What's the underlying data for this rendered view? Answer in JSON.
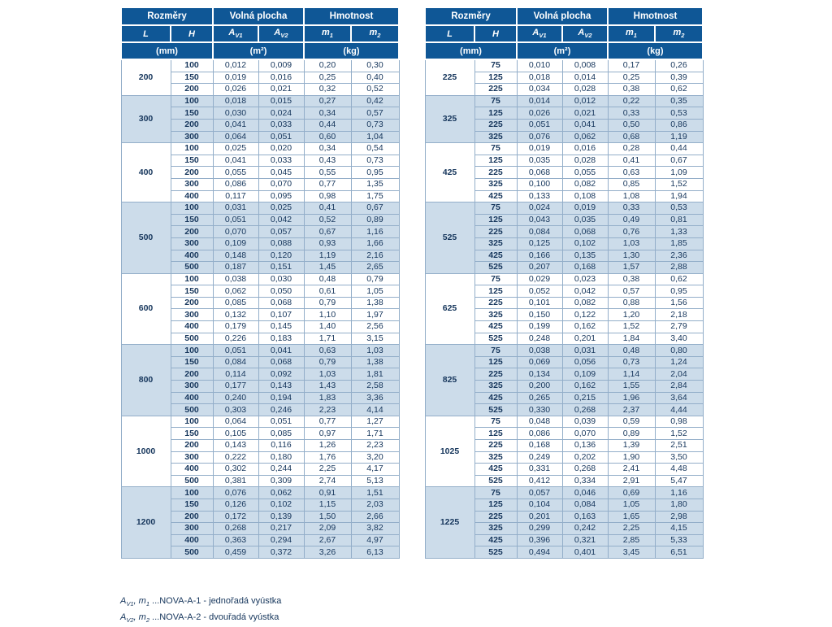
{
  "colors": {
    "header_bg": "#0f5796",
    "alt_row_bg": "#ccdcea",
    "text": "#16365c",
    "border": "#93aec9"
  },
  "tables": [
    {
      "name": "dimensions-table-left",
      "header": {
        "groups": [
          {
            "label": "Rozměry",
            "span": 2
          },
          {
            "label": "Volná plocha",
            "span": 2
          },
          {
            "label": "Hmotnost",
            "span": 2
          }
        ],
        "columns": [
          {
            "base": "L"
          },
          {
            "base": "H"
          },
          {
            "base": "A",
            "sub": "V1"
          },
          {
            "base": "A",
            "sub": "V2"
          },
          {
            "base": "m",
            "sub": "1"
          },
          {
            "base": "m",
            "sub": "2"
          }
        ],
        "units": [
          {
            "label": "(mm)",
            "span": 2
          },
          {
            "label": "(m²)",
            "span": 2
          },
          {
            "label": "(kg)",
            "span": 2
          }
        ]
      },
      "groups": [
        {
          "L": "200",
          "rows": [
            [
              "100",
              "0,012",
              "0,009",
              "0,20",
              "0,30"
            ],
            [
              "150",
              "0,019",
              "0,016",
              "0,25",
              "0,40"
            ],
            [
              "200",
              "0,026",
              "0,021",
              "0,32",
              "0,52"
            ]
          ]
        },
        {
          "L": "300",
          "rows": [
            [
              "100",
              "0,018",
              "0,015",
              "0,27",
              "0,42"
            ],
            [
              "150",
              "0,030",
              "0,024",
              "0,34",
              "0,57"
            ],
            [
              "200",
              "0,041",
              "0,033",
              "0,44",
              "0,73"
            ],
            [
              "300",
              "0,064",
              "0,051",
              "0,60",
              "1,04"
            ]
          ]
        },
        {
          "L": "400",
          "rows": [
            [
              "100",
              "0,025",
              "0,020",
              "0,34",
              "0,54"
            ],
            [
              "150",
              "0,041",
              "0,033",
              "0,43",
              "0,73"
            ],
            [
              "200",
              "0,055",
              "0,045",
              "0,55",
              "0,95"
            ],
            [
              "300",
              "0,086",
              "0,070",
              "0,77",
              "1,35"
            ],
            [
              "400",
              "0,117",
              "0,095",
              "0,98",
              "1,75"
            ]
          ]
        },
        {
          "L": "500",
          "rows": [
            [
              "100",
              "0,031",
              "0,025",
              "0,41",
              "0,67"
            ],
            [
              "150",
              "0,051",
              "0,042",
              "0,52",
              "0,89"
            ],
            [
              "200",
              "0,070",
              "0,057",
              "0,67",
              "1,16"
            ],
            [
              "300",
              "0,109",
              "0,088",
              "0,93",
              "1,66"
            ],
            [
              "400",
              "0,148",
              "0,120",
              "1,19",
              "2,16"
            ],
            [
              "500",
              "0,187",
              "0,151",
              "1,45",
              "2,65"
            ]
          ]
        },
        {
          "L": "600",
          "rows": [
            [
              "100",
              "0,038",
              "0,030",
              "0,48",
              "0,79"
            ],
            [
              "150",
              "0,062",
              "0,050",
              "0,61",
              "1,05"
            ],
            [
              "200",
              "0,085",
              "0,068",
              "0,79",
              "1,38"
            ],
            [
              "300",
              "0,132",
              "0,107",
              "1,10",
              "1,97"
            ],
            [
              "400",
              "0,179",
              "0,145",
              "1,40",
              "2,56"
            ],
            [
              "500",
              "0,226",
              "0,183",
              "1,71",
              "3,15"
            ]
          ]
        },
        {
          "L": "800",
          "rows": [
            [
              "100",
              "0,051",
              "0,041",
              "0,63",
              "1,03"
            ],
            [
              "150",
              "0,084",
              "0,068",
              "0,79",
              "1,38"
            ],
            [
              "200",
              "0,114",
              "0,092",
              "1,03",
              "1,81"
            ],
            [
              "300",
              "0,177",
              "0,143",
              "1,43",
              "2,58"
            ],
            [
              "400",
              "0,240",
              "0,194",
              "1,83",
              "3,36"
            ],
            [
              "500",
              "0,303",
              "0,246",
              "2,23",
              "4,14"
            ]
          ]
        },
        {
          "L": "1000",
          "rows": [
            [
              "100",
              "0,064",
              "0,051",
              "0,77",
              "1,27"
            ],
            [
              "150",
              "0,105",
              "0,085",
              "0,97",
              "1,71"
            ],
            [
              "200",
              "0,143",
              "0,116",
              "1,26",
              "2,23"
            ],
            [
              "300",
              "0,222",
              "0,180",
              "1,76",
              "3,20"
            ],
            [
              "400",
              "0,302",
              "0,244",
              "2,25",
              "4,17"
            ],
            [
              "500",
              "0,381",
              "0,309",
              "2,74",
              "5,13"
            ]
          ]
        },
        {
          "L": "1200",
          "rows": [
            [
              "100",
              "0,076",
              "0,062",
              "0,91",
              "1,51"
            ],
            [
              "150",
              "0,126",
              "0,102",
              "1,15",
              "2,03"
            ],
            [
              "200",
              "0,172",
              "0,139",
              "1,50",
              "2,66"
            ],
            [
              "300",
              "0,268",
              "0,217",
              "2,09",
              "3,82"
            ],
            [
              "400",
              "0,363",
              "0,294",
              "2,67",
              "4,97"
            ],
            [
              "500",
              "0,459",
              "0,372",
              "3,26",
              "6,13"
            ]
          ]
        }
      ]
    },
    {
      "name": "dimensions-table-right",
      "header": {
        "groups": [
          {
            "label": "Rozměry",
            "span": 2
          },
          {
            "label": "Volná plocha",
            "span": 2
          },
          {
            "label": "Hmotnost",
            "span": 2
          }
        ],
        "columns": [
          {
            "base": "L"
          },
          {
            "base": "H"
          },
          {
            "base": "A",
            "sub": "V1"
          },
          {
            "base": "A",
            "sub": "V2"
          },
          {
            "base": "m",
            "sub": "1"
          },
          {
            "base": "m",
            "sub": "2"
          }
        ],
        "units": [
          {
            "label": "(mm)",
            "span": 2
          },
          {
            "label": "(m²)",
            "span": 2
          },
          {
            "label": "(kg)",
            "span": 2
          }
        ]
      },
      "groups": [
        {
          "L": "225",
          "rows": [
            [
              "75",
              "0,010",
              "0,008",
              "0,17",
              "0,26"
            ],
            [
              "125",
              "0,018",
              "0,014",
              "0,25",
              "0,39"
            ],
            [
              "225",
              "0,034",
              "0,028",
              "0,38",
              "0,62"
            ]
          ]
        },
        {
          "L": "325",
          "rows": [
            [
              "75",
              "0,014",
              "0,012",
              "0,22",
              "0,35"
            ],
            [
              "125",
              "0,026",
              "0,021",
              "0,33",
              "0,53"
            ],
            [
              "225",
              "0,051",
              "0,041",
              "0,50",
              "0,86"
            ],
            [
              "325",
              "0,076",
              "0,062",
              "0,68",
              "1,19"
            ]
          ]
        },
        {
          "L": "425",
          "rows": [
            [
              "75",
              "0,019",
              "0,016",
              "0,28",
              "0,44"
            ],
            [
              "125",
              "0,035",
              "0,028",
              "0,41",
              "0,67"
            ],
            [
              "225",
              "0,068",
              "0,055",
              "0,63",
              "1,09"
            ],
            [
              "325",
              "0,100",
              "0,082",
              "0,85",
              "1,52"
            ],
            [
              "425",
              "0,133",
              "0,108",
              "1,08",
              "1,94"
            ]
          ]
        },
        {
          "L": "525",
          "rows": [
            [
              "75",
              "0,024",
              "0,019",
              "0,33",
              "0,53"
            ],
            [
              "125",
              "0,043",
              "0,035",
              "0,49",
              "0,81"
            ],
            [
              "225",
              "0,084",
              "0,068",
              "0,76",
              "1,33"
            ],
            [
              "325",
              "0,125",
              "0,102",
              "1,03",
              "1,85"
            ],
            [
              "425",
              "0,166",
              "0,135",
              "1,30",
              "2,36"
            ],
            [
              "525",
              "0,207",
              "0,168",
              "1,57",
              "2,88"
            ]
          ]
        },
        {
          "L": "625",
          "rows": [
            [
              "75",
              "0,029",
              "0,023",
              "0,38",
              "0,62"
            ],
            [
              "125",
              "0,052",
              "0,042",
              "0,57",
              "0,95"
            ],
            [
              "225",
              "0,101",
              "0,082",
              "0,88",
              "1,56"
            ],
            [
              "325",
              "0,150",
              "0,122",
              "1,20",
              "2,18"
            ],
            [
              "425",
              "0,199",
              "0,162",
              "1,52",
              "2,79"
            ],
            [
              "525",
              "0,248",
              "0,201",
              "1,84",
              "3,40"
            ]
          ]
        },
        {
          "L": "825",
          "rows": [
            [
              "75",
              "0,038",
              "0,031",
              "0,48",
              "0,80"
            ],
            [
              "125",
              "0,069",
              "0,056",
              "0,73",
              "1,24"
            ],
            [
              "225",
              "0,134",
              "0,109",
              "1,14",
              "2,04"
            ],
            [
              "325",
              "0,200",
              "0,162",
              "1,55",
              "2,84"
            ],
            [
              "425",
              "0,265",
              "0,215",
              "1,96",
              "3,64"
            ],
            [
              "525",
              "0,330",
              "0,268",
              "2,37",
              "4,44"
            ]
          ]
        },
        {
          "L": "1025",
          "rows": [
            [
              "75",
              "0,048",
              "0,039",
              "0,59",
              "0,98"
            ],
            [
              "125",
              "0,086",
              "0,070",
              "0,89",
              "1,52"
            ],
            [
              "225",
              "0,168",
              "0,136",
              "1,39",
              "2,51"
            ],
            [
              "325",
              "0,249",
              "0,202",
              "1,90",
              "3,50"
            ],
            [
              "425",
              "0,331",
              "0,268",
              "2,41",
              "4,48"
            ],
            [
              "525",
              "0,412",
              "0,334",
              "2,91",
              "5,47"
            ]
          ]
        },
        {
          "L": "1225",
          "rows": [
            [
              "75",
              "0,057",
              "0,046",
              "0,69",
              "1,16"
            ],
            [
              "125",
              "0,104",
              "0,084",
              "1,05",
              "1,80"
            ],
            [
              "225",
              "0,201",
              "0,163",
              "1,65",
              "2,98"
            ],
            [
              "325",
              "0,299",
              "0,242",
              "2,25",
              "4,15"
            ],
            [
              "425",
              "0,396",
              "0,321",
              "2,85",
              "5,33"
            ],
            [
              "525",
              "0,494",
              "0,401",
              "3,45",
              "6,51"
            ]
          ]
        }
      ]
    }
  ],
  "footnotes": [
    {
      "segments": [
        {
          "text": "A",
          "style": "i"
        },
        {
          "text": "V1",
          "style": "sub"
        },
        {
          "text": ", m",
          "style": "i"
        },
        {
          "text": "1",
          "style": "sub"
        },
        {
          "text": " ...NOVA-A-1 - jednořadá vyústka",
          "style": "n"
        }
      ]
    },
    {
      "segments": [
        {
          "text": "A",
          "style": "i"
        },
        {
          "text": "V2",
          "style": "sub"
        },
        {
          "text": ", m",
          "style": "i"
        },
        {
          "text": "2",
          "style": "sub"
        },
        {
          "text": " ...NOVA-A-2 - dvouřadá vyústka",
          "style": "n"
        }
      ]
    }
  ]
}
